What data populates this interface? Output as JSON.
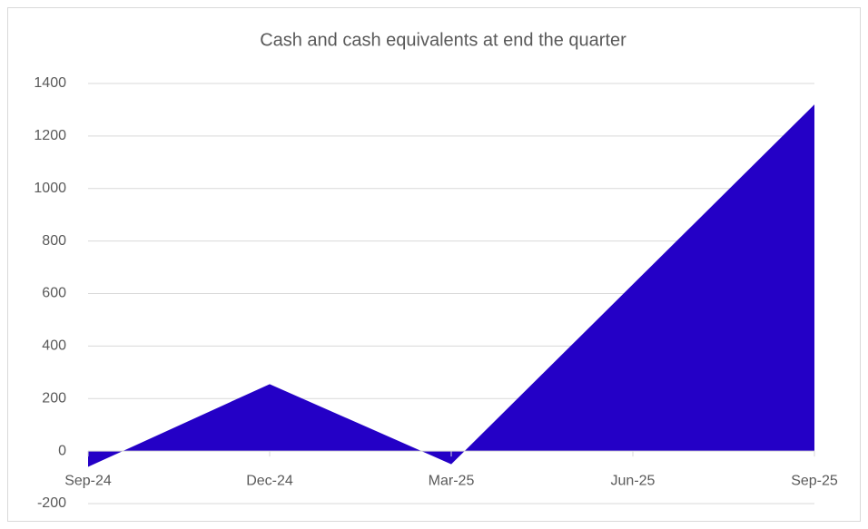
{
  "chart_data": {
    "type": "area",
    "title": "Cash and cash equivalents at end the quarter",
    "categories": [
      "Sep-24",
      "Dec-24",
      "Mar-25",
      "Jun-25",
      "Sep-25"
    ],
    "values": [
      -60,
      255,
      -50,
      635,
      1320
    ],
    "color": "#2400c6",
    "ylim": [
      -200,
      1400
    ],
    "yticks": [
      -200,
      0,
      200,
      400,
      600,
      800,
      1000,
      1200,
      1400
    ],
    "grid": true
  }
}
